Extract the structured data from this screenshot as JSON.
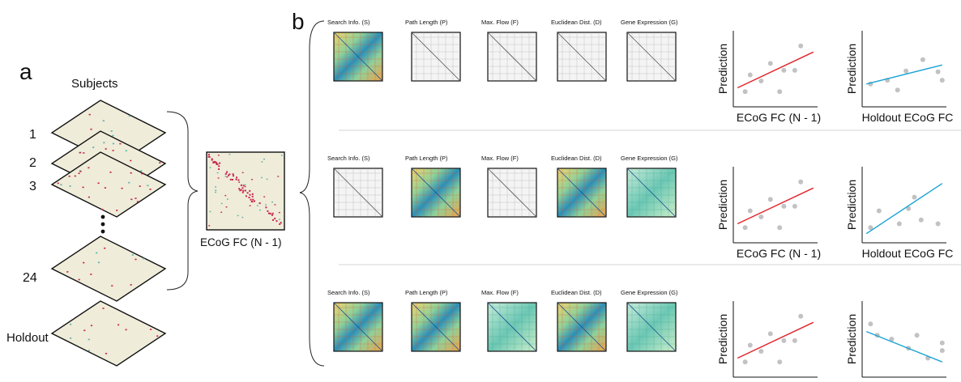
{
  "panels": {
    "a": "a",
    "b": "b"
  },
  "left": {
    "subjects_title": "Subjects",
    "layer_labels": [
      "1",
      "2",
      "3",
      "24"
    ],
    "holdout_label": "Holdout",
    "average_label": "ECoG FC (N - 1)"
  },
  "rows": [
    {
      "predictors": [
        {
          "label": "Search Info. (S)",
          "style": "color"
        },
        {
          "label": "Path Length (P)",
          "style": "gray"
        },
        {
          "label": "Max. Flow (F)",
          "style": "gray"
        },
        {
          "label": "Euclidean Dist. (D)",
          "style": "gray"
        },
        {
          "label": "Gene Expression (G)",
          "style": "gray"
        }
      ],
      "plots": [
        {
          "ylabel": "Prediction",
          "xlabel": "ECoG FC (N - 1)",
          "line_color": "#e0242b",
          "points": [
            [
              0.14,
              0.2
            ],
            [
              0.2,
              0.42
            ],
            [
              0.33,
              0.34
            ],
            [
              0.44,
              0.57
            ],
            [
              0.55,
              0.2
            ],
            [
              0.6,
              0.48
            ],
            [
              0.73,
              0.48
            ],
            [
              0.8,
              0.8
            ]
          ],
          "line": [
            [
              0.05,
              0.25
            ],
            [
              0.95,
              0.72
            ]
          ]
        },
        {
          "ylabel": "Prediction",
          "xlabel": "Holdout ECoG FC",
          "line_color": "#1aa3d4",
          "points": [
            [
              0.1,
              0.3
            ],
            [
              0.3,
              0.35
            ],
            [
              0.42,
              0.22
            ],
            [
              0.52,
              0.47
            ],
            [
              0.72,
              0.62
            ],
            [
              0.9,
              0.46
            ],
            [
              0.95,
              0.35
            ]
          ],
          "line": [
            [
              0.05,
              0.3
            ],
            [
              0.95,
              0.55
            ]
          ]
        }
      ]
    },
    {
      "predictors": [
        {
          "label": "Search Info. (S)",
          "style": "gray"
        },
        {
          "label": "Path Length (P)",
          "style": "color"
        },
        {
          "label": "Max. Flow (F)",
          "style": "gray"
        },
        {
          "label": "Euclidean Dist. (D)",
          "style": "color"
        },
        {
          "label": "Gene Expression (G)",
          "style": "green"
        }
      ],
      "plots": [
        {
          "ylabel": "Prediction",
          "xlabel": "ECoG FC (N - 1)",
          "line_color": "#e0242b",
          "points": [
            [
              0.14,
              0.2
            ],
            [
              0.2,
              0.42
            ],
            [
              0.33,
              0.34
            ],
            [
              0.44,
              0.57
            ],
            [
              0.55,
              0.2
            ],
            [
              0.6,
              0.48
            ],
            [
              0.73,
              0.48
            ],
            [
              0.8,
              0.8
            ]
          ],
          "line": [
            [
              0.05,
              0.25
            ],
            [
              0.95,
              0.72
            ]
          ]
        },
        {
          "ylabel": "Prediction",
          "xlabel": "Holdout ECoG FC",
          "line_color": "#1aa3d4",
          "points": [
            [
              0.1,
              0.2
            ],
            [
              0.2,
              0.42
            ],
            [
              0.44,
              0.25
            ],
            [
              0.55,
              0.45
            ],
            [
              0.62,
              0.6
            ],
            [
              0.7,
              0.3
            ],
            [
              0.9,
              0.25
            ]
          ],
          "line": [
            [
              0.05,
              0.12
            ],
            [
              0.95,
              0.78
            ]
          ]
        }
      ]
    },
    {
      "predictors": [
        {
          "label": "Search Info. (S)",
          "style": "color"
        },
        {
          "label": "Path Length (P)",
          "style": "color"
        },
        {
          "label": "Max. Flow (F)",
          "style": "green"
        },
        {
          "label": "Euclidean Dist. (D)",
          "style": "color"
        },
        {
          "label": "Gene Expression (G)",
          "style": "green"
        }
      ],
      "plots": [
        {
          "ylabel": "Prediction",
          "xlabel": "ECoG FC (N - 1)",
          "line_color": "#e0242b",
          "points": [
            [
              0.14,
              0.2
            ],
            [
              0.2,
              0.42
            ],
            [
              0.33,
              0.34
            ],
            [
              0.44,
              0.57
            ],
            [
              0.55,
              0.2
            ],
            [
              0.6,
              0.48
            ],
            [
              0.73,
              0.48
            ],
            [
              0.8,
              0.8
            ]
          ],
          "line": [
            [
              0.05,
              0.25
            ],
            [
              0.95,
              0.72
            ]
          ]
        },
        {
          "ylabel": "Prediction",
          "xlabel": "Holdout ECoG FC",
          "line_color": "#1aa3d4",
          "points": [
            [
              0.1,
              0.7
            ],
            [
              0.18,
              0.55
            ],
            [
              0.35,
              0.5
            ],
            [
              0.55,
              0.38
            ],
            [
              0.65,
              0.55
            ],
            [
              0.78,
              0.25
            ],
            [
              0.95,
              0.35
            ],
            [
              0.95,
              0.45
            ]
          ],
          "line": [
            [
              0.05,
              0.6
            ],
            [
              0.95,
              0.2
            ]
          ]
        }
      ]
    }
  ]
}
